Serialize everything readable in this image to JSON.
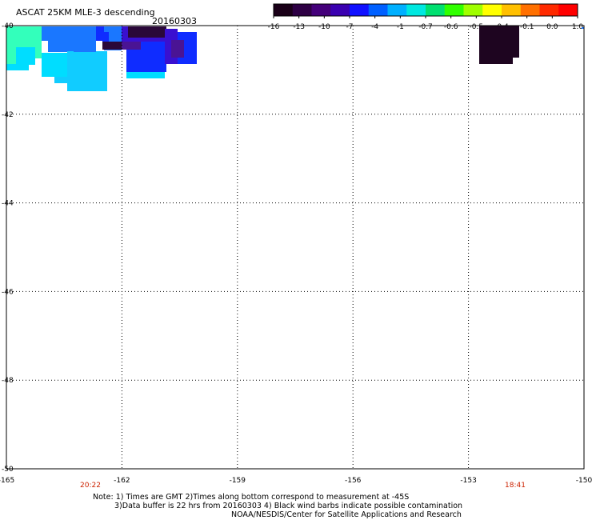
{
  "title": "ASCAT 25KM MLE-3 descending",
  "date": "20160303",
  "colorbar": {
    "labels": [
      "-16",
      "-13",
      "-10",
      "-7",
      "-4",
      "-1",
      "-0.7",
      "-0.6",
      "-0.5",
      "-0.4",
      "-0.1",
      "0.0",
      "1.0"
    ],
    "colors": [
      "#1a0018",
      "#2e0044",
      "#44007a",
      "#3a00b0",
      "#1010ff",
      "#0060ff",
      "#00b0ff",
      "#00e8e0",
      "#00e070",
      "#30ff00",
      "#a0ff00",
      "#ffff00",
      "#ffc000",
      "#ff7000",
      "#ff2a00",
      "#ff0000"
    ]
  },
  "axes": {
    "lat_labels": [
      "-40",
      "-42",
      "-44",
      "-46",
      "-48",
      "-50"
    ],
    "lon_labels": [
      "-165",
      "-162",
      "-159",
      "-156",
      "-153",
      "-150"
    ]
  },
  "times": [
    "20:22",
    "18:41"
  ],
  "notes": [
    "Note: 1) Times are GMT 2)Times along bottom correspond to measurement at -45S",
    "3)Data buffer is 22 hrs from 20160303 4) Black wind barbs indicate possible contamination",
    "NOAA/NESDIS/Center for Satellite Applications and Research"
  ],
  "data_colors": {
    "mint": "#33ffbb",
    "light_blue": "#00ddff",
    "sky": "#11ccff",
    "medium_blue": "#1a77ff",
    "blue": "#0f2cff",
    "indigo": "#3a10d0",
    "purple": "#4a1494",
    "dark_purple": "#2a0838",
    "near_black": "#1e0520"
  }
}
